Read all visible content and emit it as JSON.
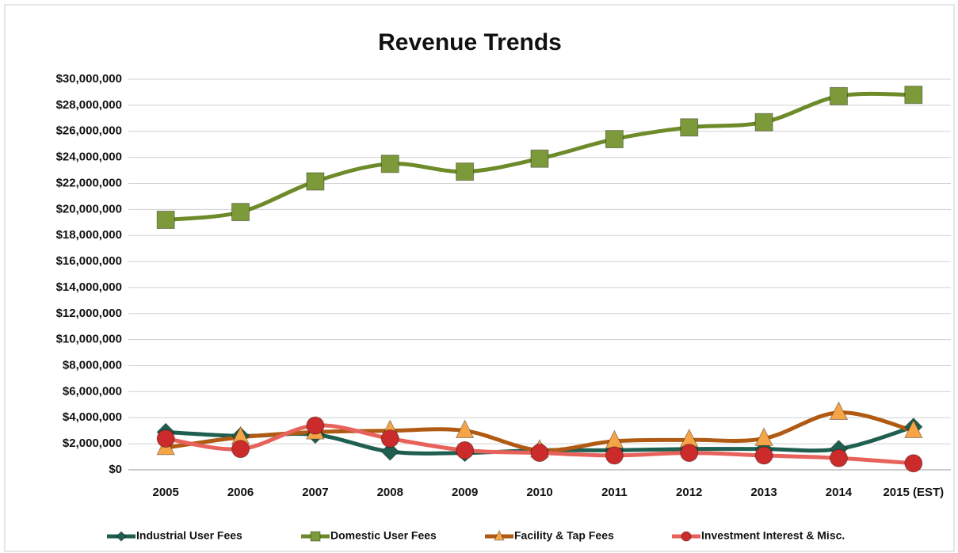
{
  "chart_data": {
    "type": "line",
    "title": "Revenue Trends",
    "categories": [
      "2005",
      "2006",
      "2007",
      "2008",
      "2009",
      "2010",
      "2011",
      "2012",
      "2013",
      "2014",
      "2015 (EST)"
    ],
    "series": [
      {
        "name": "Industrial User Fees",
        "color": "#1f5f50",
        "values": [
          2900000,
          2600000,
          2700000,
          1400000,
          1300000,
          1500000,
          1500000,
          1600000,
          1600000,
          1600000,
          3300000
        ]
      },
      {
        "name": "Domestic User Fees",
        "color": "#6e8b2a",
        "values": [
          19200000,
          19800000,
          22150000,
          23500000,
          22900000,
          23900000,
          25400000,
          26300000,
          26700000,
          28700000,
          28800000
        ]
      },
      {
        "name": "Facility & Tap Fees",
        "color": "#b05a14",
        "values": [
          1700000,
          2500000,
          2900000,
          3000000,
          3000000,
          1500000,
          2200000,
          2300000,
          2400000,
          4400000,
          3000000
        ]
      },
      {
        "name": "Investment Interest & Misc.",
        "color": "#e8625c",
        "values": [
          2400000,
          1600000,
          3400000,
          2400000,
          1500000,
          1300000,
          1100000,
          1300000,
          1100000,
          900000,
          500000
        ]
      }
    ],
    "ylim": [
      0,
      30000000
    ],
    "yticks": [
      {
        "value": 0,
        "label": "$0"
      },
      {
        "value": 2000000,
        "label": "$2,000,000"
      },
      {
        "value": 4000000,
        "label": "$4,000,000"
      },
      {
        "value": 6000000,
        "label": "$6,000,000"
      },
      {
        "value": 8000000,
        "label": "$8,000,000"
      },
      {
        "value": 10000000,
        "label": "$10,000,000"
      },
      {
        "value": 12000000,
        "label": "$12,000,000"
      },
      {
        "value": 14000000,
        "label": "$14,000,000"
      },
      {
        "value": 16000000,
        "label": "$16,000,000"
      },
      {
        "value": 18000000,
        "label": "$18,000,000"
      },
      {
        "value": 20000000,
        "label": "$20,000,000"
      },
      {
        "value": 22000000,
        "label": "$22,000,000"
      },
      {
        "value": 24000000,
        "label": "$24,000,000"
      },
      {
        "value": 26000000,
        "label": "$26,000,000"
      },
      {
        "value": 28000000,
        "label": "$28,000,000"
      },
      {
        "value": 30000000,
        "label": "$30,000,000"
      }
    ],
    "grid": true
  }
}
